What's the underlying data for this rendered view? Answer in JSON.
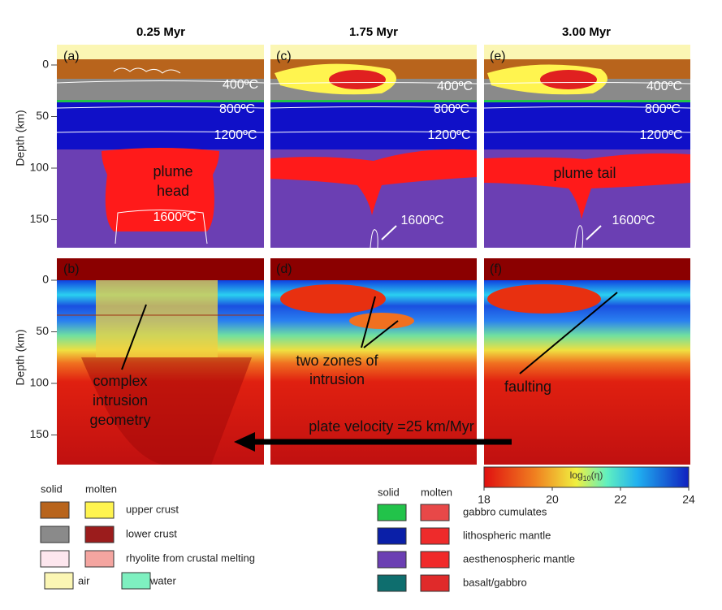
{
  "columns": [
    "0.25 Myr",
    "1.75 Myr",
    "3.00 Myr"
  ],
  "y_axis": {
    "label": "Depth (km)",
    "ticks": [
      0,
      50,
      100,
      150
    ]
  },
  "panels": [
    {
      "label": "(a)",
      "isotherms": [
        "400ºC",
        "800ºC",
        "1200ºC",
        "1600ºC"
      ],
      "notes": [
        "plume",
        "head"
      ]
    },
    {
      "label": "(c)",
      "isotherms": [
        "400ºC",
        "800ºC",
        "1200ºC",
        "1600ºC"
      ]
    },
    {
      "label": "(e)",
      "isotherms": [
        "400ºC",
        "800ºC",
        "1200ºC",
        "1600ºC"
      ],
      "notes": [
        "plume tail"
      ]
    },
    {
      "label": "(b)",
      "notes": [
        "complex",
        "intrusion",
        "geometry"
      ]
    },
    {
      "label": "(d)",
      "notes": [
        "two zones of",
        "intrusion"
      ]
    },
    {
      "label": "(f)",
      "notes": [
        "faulting"
      ]
    }
  ],
  "arrow_label": "plate velocity =25 km/Myr",
  "colorbar": {
    "label": {
      "base": "log",
      "sub": "10",
      "arg": "(η)"
    },
    "ticks": [
      18,
      20,
      22,
      24
    ]
  },
  "legend_left": {
    "solid": "solid",
    "molten": "molten",
    "rows": [
      {
        "label": "upper crust",
        "solid_color": "#b8641c",
        "molten_color": "#fff44f"
      },
      {
        "label": "lower crust",
        "solid_color": "#8a8a8a",
        "molten_color": "#9b1c1c"
      },
      {
        "label": "rhyolite from crustal melting",
        "solid_color": "#fde6ee",
        "molten_color": "#f4a5a0"
      }
    ],
    "extra": [
      {
        "label": "air",
        "color": "#fbf6b4"
      },
      {
        "label": "water",
        "color": "#7ef0c0"
      }
    ]
  },
  "legend_right": {
    "solid": "solid",
    "molten": "molten",
    "rows": [
      {
        "label": "gabbro cumulates",
        "solid_color": "#22c34a",
        "molten_color": "#e84848"
      },
      {
        "label": "lithospheric mantle",
        "solid_color": "#0a1fa8",
        "molten_color": "#ee2b2b"
      },
      {
        "label": "aesthenospheric mantle",
        "solid_color": "#6b3fb3",
        "molten_color": "#f02a2a"
      },
      {
        "label": "basalt/gabbro",
        "solid_color": "#0e6e6e",
        "molten_color": "#e02a2a"
      }
    ]
  }
}
